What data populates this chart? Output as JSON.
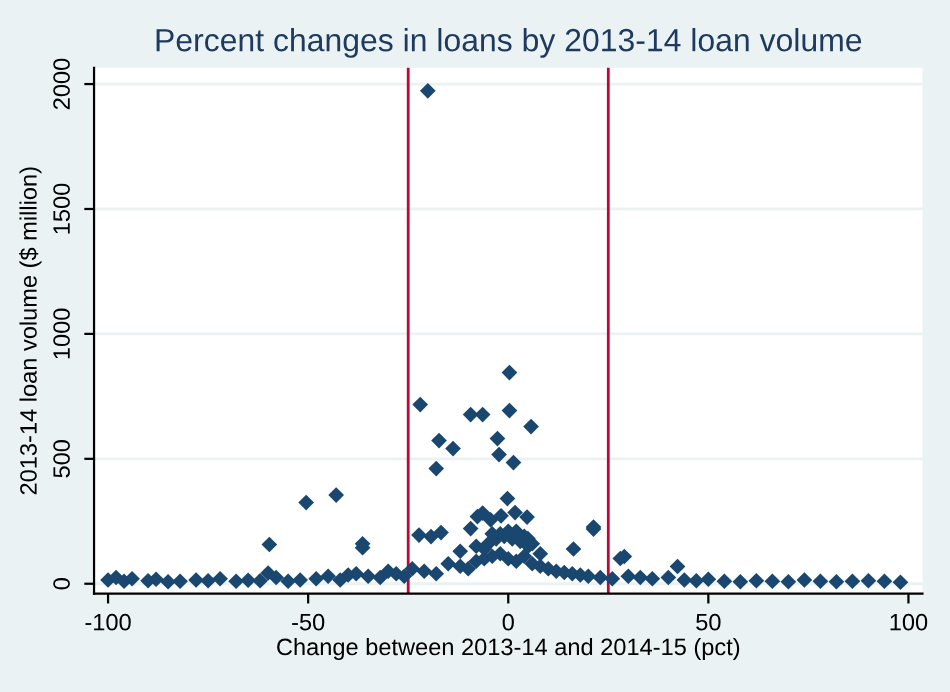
{
  "chart_data": {
    "type": "scatter",
    "title": "Percent changes in loans by 2013-14 loan volume",
    "xlabel": "Change between 2013-14 and 2014-15 (pct)",
    "ylabel": "2013-14 loan volume ($ million)",
    "series": [
      {
        "color": "#1a476f",
        "x": [
          -20.1,
          -22,
          -17.3,
          -18,
          -13.8,
          -9.4,
          -6.4,
          -2.7,
          -2.3,
          0.3,
          0.3,
          1.3,
          5.7,
          -50.5,
          -43,
          -59.7,
          -36.4,
          -36.4,
          -0.2,
          21.3,
          21.3,
          16.3,
          4.9,
          -22.3,
          -19.3,
          -16.8,
          -7.7,
          -6.4,
          -4.4,
          -1.8,
          1.7,
          4.7,
          -9.4,
          28,
          29,
          42.3,
          -60,
          -100,
          -98,
          -96,
          -94,
          -90,
          -88,
          -85,
          -82,
          -78,
          -75,
          -72,
          -68,
          -65,
          -62,
          -58,
          -55,
          -52,
          -48,
          -45,
          -42,
          -40,
          -38,
          -35,
          -32,
          -30,
          -28,
          -26,
          -24,
          -21,
          -18,
          -15,
          -12,
          -10,
          -8,
          -6,
          -4,
          -2,
          0,
          2,
          4,
          6,
          8,
          10,
          12,
          14,
          16,
          18,
          20,
          23,
          26,
          30,
          33,
          36,
          40,
          44,
          47,
          50,
          54,
          58,
          62,
          66,
          70,
          74,
          78,
          82,
          86,
          90,
          94,
          98,
          -12,
          -8,
          -5,
          -3,
          -1,
          1,
          3,
          5,
          8,
          -6,
          -2,
          2,
          6,
          -4,
          0,
          4
        ],
        "values": [
          1973,
          717,
          573,
          461,
          541,
          677,
          677,
          581,
          517,
          845,
          693,
          485,
          629,
          325,
          355,
          157,
          160,
          144,
          341,
          227,
          219,
          139,
          181,
          195,
          189,
          205,
          269,
          283,
          256,
          272,
          285,
          267,
          221,
          101,
          109,
          69,
          43,
          15,
          25,
          10,
          20,
          12,
          18,
          8,
          10,
          15,
          12,
          20,
          10,
          14,
          12,
          25,
          10,
          15,
          20,
          30,
          15,
          35,
          40,
          30,
          25,
          50,
          40,
          30,
          60,
          50,
          40,
          80,
          70,
          60,
          90,
          100,
          110,
          120,
          100,
          90,
          110,
          80,
          70,
          60,
          50,
          45,
          40,
          35,
          30,
          25,
          20,
          30,
          25,
          20,
          25,
          15,
          12,
          18,
          10,
          8,
          12,
          10,
          8,
          15,
          10,
          8,
          10,
          12,
          10,
          6,
          130,
          150,
          160,
          180,
          190,
          180,
          170,
          150,
          120,
          140,
          200,
          210,
          160,
          200,
          210,
          190
        ]
      }
    ],
    "xlim": [
      -103.5,
      103.5
    ],
    "ylim": [
      -40,
      2065
    ],
    "xticks": [
      -100,
      -50,
      0,
      50,
      100
    ],
    "yticks": [
      0,
      500,
      1000,
      1500,
      2000
    ],
    "grid": "y",
    "marker": "diamond",
    "legend": false,
    "ref_lines": [
      {
        "axis": "x",
        "value": -25,
        "color": "#c10534"
      },
      {
        "axis": "x",
        "value": 25,
        "color": "#c10534"
      }
    ]
  }
}
